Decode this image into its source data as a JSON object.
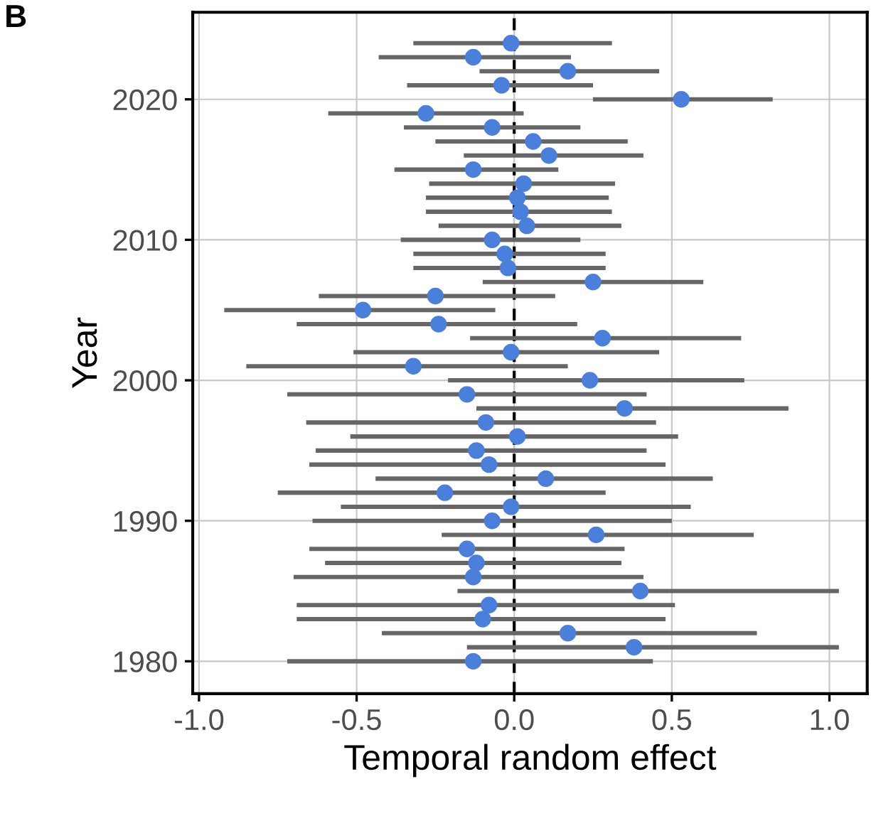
{
  "chart_data": {
    "type": "scatter",
    "xlabel": "Temporal random effect",
    "ylabel": "Year",
    "annotations": [
      "B"
    ],
    "x": [
      -0.13,
      0.38,
      0.17,
      -0.1,
      -0.08,
      0.4,
      -0.13,
      -0.12,
      -0.15,
      0.26,
      -0.07,
      -0.01,
      -0.22,
      0.1,
      -0.08,
      -0.12,
      0.01,
      -0.09,
      0.35,
      -0.15,
      0.24,
      -0.32,
      -0.01,
      0.28,
      -0.24,
      -0.48,
      -0.25,
      0.25,
      -0.02,
      -0.03,
      -0.07,
      0.04,
      0.02,
      0.01,
      0.03,
      -0.13,
      0.11,
      0.06,
      -0.07,
      -0.28,
      0.53,
      -0.04,
      0.17,
      -0.13,
      -0.01
    ],
    "values": [
      1980,
      1981,
      1982,
      1983,
      1984,
      1985,
      1986,
      1987,
      1988,
      1989,
      1990,
      1991,
      1992,
      1993,
      1994,
      1995,
      1996,
      1997,
      1998,
      1999,
      2000,
      2001,
      2002,
      2003,
      2004,
      2005,
      2006,
      2007,
      2008,
      2009,
      2010,
      2011,
      2012,
      2013,
      2014,
      2015,
      2016,
      2017,
      2018,
      2019,
      2020,
      2021,
      2022,
      2023,
      2024
    ],
    "xerrors": [
      [
        -0.72,
        0.44
      ],
      [
        -0.15,
        1.03
      ],
      [
        -0.42,
        0.77
      ],
      [
        -0.69,
        0.48
      ],
      [
        -0.69,
        0.51
      ],
      [
        -0.18,
        1.03
      ],
      [
        -0.7,
        0.41
      ],
      [
        -0.6,
        0.34
      ],
      [
        -0.65,
        0.35
      ],
      [
        -0.23,
        0.76
      ],
      [
        -0.64,
        0.5
      ],
      [
        -0.55,
        0.56
      ],
      [
        -0.75,
        0.29
      ],
      [
        -0.44,
        0.63
      ],
      [
        -0.65,
        0.48
      ],
      [
        -0.63,
        0.42
      ],
      [
        -0.52,
        0.52
      ],
      [
        -0.66,
        0.45
      ],
      [
        -0.12,
        0.87
      ],
      [
        -0.72,
        0.42
      ],
      [
        -0.21,
        0.73
      ],
      [
        -0.85,
        0.17
      ],
      [
        -0.51,
        0.46
      ],
      [
        -0.14,
        0.72
      ],
      [
        -0.69,
        0.2
      ],
      [
        -0.92,
        -0.06
      ],
      [
        -0.62,
        0.13
      ],
      [
        -0.1,
        0.6
      ],
      [
        -0.32,
        0.29
      ],
      [
        -0.32,
        0.29
      ],
      [
        -0.36,
        0.21
      ],
      [
        -0.24,
        0.34
      ],
      [
        -0.28,
        0.31
      ],
      [
        -0.28,
        0.3
      ],
      [
        -0.27,
        0.32
      ],
      [
        -0.38,
        0.14
      ],
      [
        -0.16,
        0.41
      ],
      [
        -0.25,
        0.36
      ],
      [
        -0.35,
        0.21
      ],
      [
        -0.59,
        0.03
      ],
      [
        0.25,
        0.82
      ],
      [
        -0.34,
        0.25
      ],
      [
        -0.11,
        0.46
      ],
      [
        -0.43,
        0.18
      ],
      [
        -0.32,
        0.31
      ]
    ],
    "color": "#4a7fdb",
    "marker": "circle",
    "xlim": [
      -1.02,
      1.12
    ],
    "ylim": [
      1977.7,
      2026.2
    ],
    "xticks": [
      {
        "value": -1.0,
        "label": "-1.0"
      },
      {
        "value": -0.5,
        "label": "-0.5"
      },
      {
        "value": 0.0,
        "label": "0.0"
      },
      {
        "value": 0.5,
        "label": "0.5"
      },
      {
        "value": 1.0,
        "label": "1.0"
      }
    ],
    "yticks": [
      1980,
      1990,
      2000,
      2010,
      2020
    ],
    "ref_lines": [
      {
        "axis": "x",
        "value": 0,
        "color": "#000000",
        "line_style": "dashed"
      }
    ],
    "grid": true
  }
}
